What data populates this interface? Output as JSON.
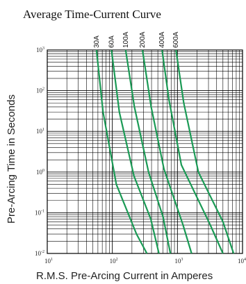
{
  "chart_data": {
    "type": "line",
    "title": "Average Time-Current Curve",
    "xlabel": "R.M.S. Pre-Arcing Current in Amperes",
    "ylabel": "Pre-Arcing Time in Seconds",
    "x_scale": "log",
    "y_scale": "log",
    "xlim": [
      10,
      10000
    ],
    "ylim": [
      0.01,
      1000
    ],
    "grid": true,
    "x_ticks": [
      {
        "base": "10",
        "exp": "1"
      },
      {
        "base": "10",
        "exp": "2"
      },
      {
        "base": "10",
        "exp": "3"
      },
      {
        "base": "10",
        "exp": "4"
      }
    ],
    "y_ticks": [
      {
        "base": "10",
        "exp": "-2"
      },
      {
        "base": "10",
        "exp": "-1"
      },
      {
        "base": "10",
        "exp": "0"
      },
      {
        "base": "10",
        "exp": "1"
      },
      {
        "base": "10",
        "exp": "2"
      },
      {
        "base": "10",
        "exp": "3"
      }
    ],
    "series_color": "#1a9a55",
    "series": [
      {
        "name": "30A",
        "points": [
          [
            57,
            1000
          ],
          [
            72,
            30
          ],
          [
            115,
            0.5
          ],
          [
            235,
            0.03
          ],
          [
            340,
            0.01
          ]
        ]
      },
      {
        "name": "60A",
        "points": [
          [
            97,
            1000
          ],
          [
            128,
            30
          ],
          [
            215,
            0.8
          ],
          [
            390,
            0.07
          ],
          [
            520,
            0.01
          ]
        ]
      },
      {
        "name": "100A",
        "points": [
          [
            160,
            1000
          ],
          [
            218,
            40
          ],
          [
            360,
            1
          ],
          [
            600,
            0.08
          ],
          [
            780,
            0.01
          ]
        ]
      },
      {
        "name": "200A",
        "points": [
          [
            290,
            1000
          ],
          [
            395,
            40
          ],
          [
            620,
            1.2
          ],
          [
            1220,
            0.05
          ],
          [
            1650,
            0.01
          ]
        ]
      },
      {
        "name": "400A",
        "points": [
          [
            580,
            1000
          ],
          [
            740,
            60
          ],
          [
            1150,
            1.5
          ],
          [
            3200,
            0.05
          ],
          [
            5000,
            0.01
          ]
        ]
      },
      {
        "name": "600A",
        "points": [
          [
            950,
            1000
          ],
          [
            1250,
            50
          ],
          [
            2100,
            1
          ],
          [
            5000,
            0.06
          ],
          [
            7300,
            0.01
          ]
        ]
      }
    ]
  }
}
